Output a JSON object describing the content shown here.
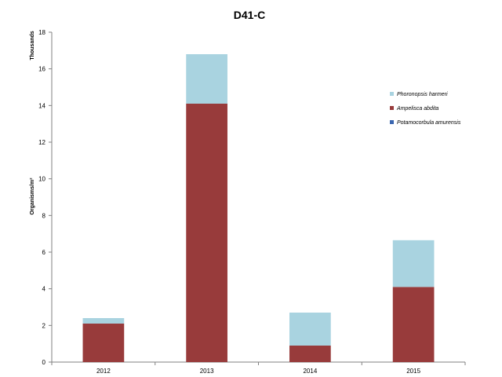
{
  "chart_data": {
    "type": "bar",
    "stacked": true,
    "title": "D41-C",
    "xlabel": "",
    "ylabel": "Organisms/m²",
    "y_units_label": "Thousands",
    "ylim": [
      0,
      18
    ],
    "yticks": [
      "0",
      "2",
      "4",
      "6",
      "8",
      "10",
      "12",
      "14",
      "16",
      "18"
    ],
    "categories": [
      "2012",
      "2013",
      "2014",
      "2015"
    ],
    "series": [
      {
        "name": "Potamocorbula  amurensis",
        "color": "#3a66b0",
        "values": [
          0,
          0,
          0,
          0
        ]
      },
      {
        "name": "Ampelisca abdita",
        "color": "#983b3b",
        "values": [
          2.1,
          14.1,
          0.9,
          4.1
        ]
      },
      {
        "name": "Phoronopsis  harmeri",
        "color": "#a9d3e0",
        "values": [
          0.3,
          2.7,
          1.8,
          2.55
        ]
      }
    ],
    "legend_order": [
      "Phoronopsis  harmeri",
      "Ampelisca abdita",
      "Potamocorbula  amurensis"
    ],
    "legend_position": "right",
    "grid": false
  }
}
